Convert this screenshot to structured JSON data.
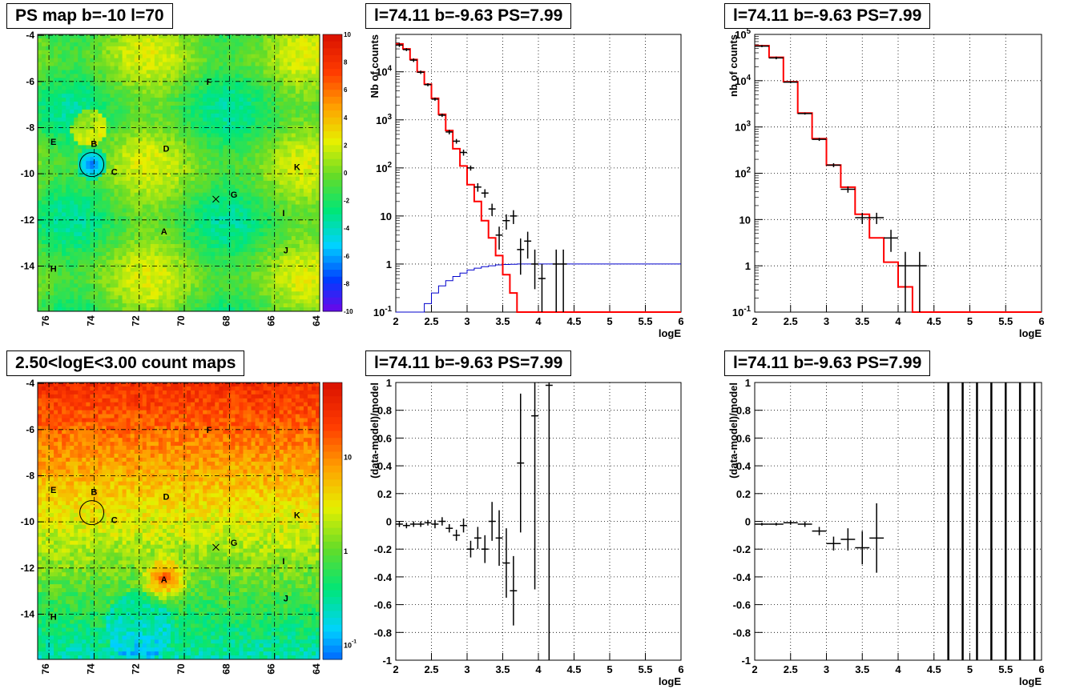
{
  "titles": {
    "map_top": "PS map b=-10 l=70",
    "spec_main": "l=74.11 b=-9.63 PS=7.99",
    "spec_side": "l=74.11 b=-9.63 PS=7.99",
    "map_bottom": "2.50<logE<3.00 count maps",
    "resid_main": "l=74.11 b=-9.63 PS=7.99",
    "resid_side": "l=74.11 b=-9.63 PS=7.99"
  },
  "colors": {
    "data": "#000000",
    "model": "#ff0000",
    "exposure": "#0000cc",
    "grid": "#000000"
  },
  "chart_data": [
    {
      "type": "heatmap",
      "title": "PS map b=-10 l=70",
      "xticks": [
        "76",
        "74",
        "72",
        "70",
        "68",
        "66",
        "64"
      ],
      "yticks": [
        "-4",
        "-6",
        "-8",
        "-10",
        "-12",
        "-14"
      ],
      "colorbar_ticks": [
        "10",
        "8",
        "6",
        "4",
        "2",
        "0",
        "-2",
        "-4",
        "-6",
        "-8",
        "-10"
      ],
      "sources": [
        {
          "label": "A",
          "l": 70.9,
          "b": -12.5
        },
        {
          "label": "B",
          "l": 74.0,
          "b": -8.7
        },
        {
          "label": "C",
          "l": 73.1,
          "b": -9.9
        },
        {
          "label": "D",
          "l": 70.8,
          "b": -8.9
        },
        {
          "label": "E",
          "l": 75.8,
          "b": -8.6
        },
        {
          "label": "F",
          "l": 68.9,
          "b": -6.0
        },
        {
          "label": "G",
          "l": 67.8,
          "b": -10.9
        },
        {
          "label": "H",
          "l": 75.8,
          "b": -14.1
        },
        {
          "label": "I",
          "l": 65.6,
          "b": -11.7
        },
        {
          "label": "J",
          "l": 65.5,
          "b": -13.3
        },
        {
          "label": "K",
          "l": 65.0,
          "b": -9.7
        }
      ],
      "circle": {
        "l": 74.1,
        "b": -9.6
      },
      "cross": {
        "l": 68.6,
        "b": -11.1
      }
    },
    {
      "type": "line",
      "title": "l=74.11 b=-9.63 PS=7.99",
      "xlabel": "logE",
      "ylabel": "Nb of counts",
      "log_y": true,
      "xlim": [
        2,
        6
      ],
      "ylim": [
        0.1,
        60000
      ],
      "xticks": [
        "2",
        "2.5",
        "3",
        "3.5",
        "4",
        "4.5",
        "5",
        "5.5",
        "6"
      ],
      "yticks": [
        {
          "v": 0.1,
          "t": "10",
          "sup": "-1"
        },
        {
          "v": 1,
          "t": "1",
          "sup": ""
        },
        {
          "v": 10,
          "t": "10",
          "sup": ""
        },
        {
          "v": 100,
          "t": "10",
          "sup": "2"
        },
        {
          "v": 1000,
          "t": "10",
          "sup": "3"
        },
        {
          "v": 10000,
          "t": "10",
          "sup": "4"
        }
      ],
      "bin_width": 0.1,
      "model": [
        38000,
        30000,
        18000,
        10000,
        5500,
        2800,
        1300,
        600,
        250,
        110,
        45,
        20,
        8,
        3.5,
        1.5,
        0.6,
        0.25,
        0.1,
        0.1,
        0.1,
        0.1,
        0.1,
        0.1,
        0.1,
        0.1,
        0.1,
        0.1,
        0.1,
        0.1,
        0.1,
        0.1,
        0.1,
        0.1,
        0.1,
        0.1,
        0.1,
        0.1,
        0.1,
        0.1,
        0.1
      ],
      "exposure": [
        0.1,
        0.1,
        0.1,
        0.1,
        0.15,
        0.25,
        0.35,
        0.45,
        0.55,
        0.65,
        0.75,
        0.82,
        0.88,
        0.92,
        0.96,
        0.98,
        0.99,
        1,
        1,
        1,
        1,
        1,
        1,
        1,
        1,
        1,
        1,
        1,
        1,
        1,
        1,
        1,
        1,
        1,
        1,
        1,
        1,
        1,
        1,
        1
      ],
      "points": [
        {
          "x": 2.05,
          "y": 36000,
          "lo": 33000,
          "hi": 39000
        },
        {
          "x": 2.15,
          "y": 29000,
          "lo": 27000,
          "hi": 31000
        },
        {
          "x": 2.25,
          "y": 17500,
          "lo": 16000,
          "hi": 19000
        },
        {
          "x": 2.35,
          "y": 9800,
          "lo": 9000,
          "hi": 10600
        },
        {
          "x": 2.45,
          "y": 5400,
          "lo": 5000,
          "hi": 5800
        },
        {
          "x": 2.55,
          "y": 2700,
          "lo": 2500,
          "hi": 2900
        },
        {
          "x": 2.65,
          "y": 1250,
          "lo": 1150,
          "hi": 1350
        },
        {
          "x": 2.75,
          "y": 560,
          "lo": 500,
          "hi": 620
        },
        {
          "x": 2.85,
          "y": 360,
          "lo": 320,
          "hi": 400
        },
        {
          "x": 2.95,
          "y": 210,
          "lo": 180,
          "hi": 240
        },
        {
          "x": 3.05,
          "y": 100,
          "lo": 88,
          "hi": 112
        },
        {
          "x": 3.15,
          "y": 40,
          "lo": 32,
          "hi": 48
        },
        {
          "x": 3.25,
          "y": 30,
          "lo": 24,
          "hi": 36
        },
        {
          "x": 3.35,
          "y": 14,
          "lo": 10,
          "hi": 18
        },
        {
          "x": 3.45,
          "y": 4,
          "lo": 2,
          "hi": 6
        },
        {
          "x": 3.55,
          "y": 8,
          "lo": 5.2,
          "hi": 10.8
        },
        {
          "x": 3.65,
          "y": 10,
          "lo": 6.8,
          "hi": 13.2
        },
        {
          "x": 3.75,
          "y": 2,
          "lo": 0.6,
          "hi": 3.4
        },
        {
          "x": 3.85,
          "y": 3,
          "lo": 1.3,
          "hi": 4.7
        },
        {
          "x": 3.95,
          "y": 1,
          "lo": 0.3,
          "hi": 2
        },
        {
          "x": 4.05,
          "y": 0.5,
          "lo": 0.1,
          "hi": 1
        },
        {
          "x": 4.25,
          "y": 1,
          "lo": 0.1,
          "hi": 2
        },
        {
          "x": 4.35,
          "y": 1,
          "lo": 0.1,
          "hi": 2
        }
      ]
    },
    {
      "type": "line",
      "title": "l=74.11 b=-9.63 PS=7.99",
      "xlabel": "logE",
      "ylabel": "nb of counts",
      "log_y": true,
      "xlim": [
        2,
        6
      ],
      "ylim": [
        0.1,
        100000
      ],
      "xticks": [
        "2",
        "2.5",
        "3",
        "3.5",
        "4",
        "4.5",
        "5",
        "5.5",
        "6"
      ],
      "yticks": [
        {
          "v": 0.1,
          "t": "10",
          "sup": "-1"
        },
        {
          "v": 1,
          "t": "1",
          "sup": ""
        },
        {
          "v": 10,
          "t": "10",
          "sup": ""
        },
        {
          "v": 100,
          "t": "10",
          "sup": "2"
        },
        {
          "v": 1000,
          "t": "10",
          "sup": "3"
        },
        {
          "v": 10000,
          "t": "10",
          "sup": "4"
        },
        {
          "v": 100000,
          "t": "10",
          "sup": "5"
        }
      ],
      "bin_width": 0.2,
      "model": [
        57000,
        32000,
        9500,
        2000,
        560,
        150,
        50,
        13,
        4,
        1.2,
        0.35,
        0.1,
        0.1,
        0.1,
        0.1,
        0.1,
        0.1,
        0.1,
        0.1,
        0.1
      ],
      "points": [
        {
          "x": 2.1,
          "y": 56000,
          "lo": 53000,
          "hi": 59000
        },
        {
          "x": 2.3,
          "y": 31000,
          "lo": 29000,
          "hi": 33000
        },
        {
          "x": 2.5,
          "y": 9300,
          "lo": 8800,
          "hi": 9800
        },
        {
          "x": 2.7,
          "y": 1950,
          "lo": 1850,
          "hi": 2050
        },
        {
          "x": 2.9,
          "y": 540,
          "lo": 500,
          "hi": 580
        },
        {
          "x": 3.1,
          "y": 150,
          "lo": 135,
          "hi": 165
        },
        {
          "x": 3.3,
          "y": 45,
          "lo": 38,
          "hi": 52
        },
        {
          "x": 3.5,
          "y": 11,
          "lo": 8,
          "hi": 14
        },
        {
          "x": 3.7,
          "y": 11,
          "lo": 8,
          "hi": 14
        },
        {
          "x": 3.9,
          "y": 4,
          "lo": 2,
          "hi": 6
        },
        {
          "x": 4.1,
          "y": 1,
          "lo": 0.1,
          "hi": 2
        },
        {
          "x": 4.3,
          "y": 1,
          "lo": 0.1,
          "hi": 2
        }
      ]
    },
    {
      "type": "heatmap",
      "title": "2.50<logE<3.00 count maps",
      "xticks": [
        "76",
        "74",
        "72",
        "70",
        "68",
        "66",
        "64"
      ],
      "yticks": [
        "-4",
        "-6",
        "-8",
        "-10",
        "-12",
        "-14"
      ],
      "colorbar_ticks": [
        {
          "t": "10",
          "sup": ""
        },
        {
          "t": "1",
          "sup": ""
        },
        {
          "t": "10",
          "sup": "-1"
        }
      ],
      "sources": [
        {
          "label": "A",
          "l": 70.9,
          "b": -12.5
        },
        {
          "label": "B",
          "l": 74.0,
          "b": -8.7
        },
        {
          "label": "C",
          "l": 73.1,
          "b": -9.9
        },
        {
          "label": "D",
          "l": 70.8,
          "b": -8.9
        },
        {
          "label": "E",
          "l": 75.8,
          "b": -8.6
        },
        {
          "label": "F",
          "l": 68.9,
          "b": -6.0
        },
        {
          "label": "G",
          "l": 67.8,
          "b": -10.9
        },
        {
          "label": "H",
          "l": 75.8,
          "b": -14.1
        },
        {
          "label": "I",
          "l": 65.6,
          "b": -11.7
        },
        {
          "label": "J",
          "l": 65.5,
          "b": -13.3
        },
        {
          "label": "K",
          "l": 65.0,
          "b": -9.7
        }
      ],
      "circle": {
        "l": 74.1,
        "b": -9.6
      },
      "cross": {
        "l": 68.6,
        "b": -11.1
      }
    },
    {
      "type": "scatter",
      "title": "l=74.11 b=-9.63 PS=7.99",
      "xlabel": "logE",
      "ylabel": "(data-model)/model",
      "xlim": [
        2,
        6
      ],
      "ylim": [
        -1,
        1
      ],
      "xticks": [
        "2",
        "2.5",
        "3",
        "3.5",
        "4",
        "4.5",
        "5",
        "5.5",
        "6"
      ],
      "yticks": [
        "-1",
        "-0.8",
        "-0.6",
        "-0.4",
        "-0.2",
        "0",
        "0.2",
        "0.4",
        "0.6",
        "0.8",
        "1"
      ],
      "points": [
        {
          "x": 2.05,
          "y": -0.02,
          "e": 0.02,
          "w": 0.05
        },
        {
          "x": 2.15,
          "y": -0.03,
          "e": 0.02,
          "w": 0.05
        },
        {
          "x": 2.25,
          "y": -0.02,
          "e": 0.02,
          "w": 0.05
        },
        {
          "x": 2.35,
          "y": -0.02,
          "e": 0.02,
          "w": 0.05
        },
        {
          "x": 2.45,
          "y": -0.01,
          "e": 0.02,
          "w": 0.05
        },
        {
          "x": 2.55,
          "y": -0.02,
          "e": 0.03,
          "w": 0.05
        },
        {
          "x": 2.65,
          "y": 0.0,
          "e": 0.03,
          "w": 0.05
        },
        {
          "x": 2.75,
          "y": -0.05,
          "e": 0.03,
          "w": 0.05
        },
        {
          "x": 2.85,
          "y": -0.1,
          "e": 0.04,
          "w": 0.05
        },
        {
          "x": 2.95,
          "y": -0.03,
          "e": 0.05,
          "w": 0.05
        },
        {
          "x": 3.05,
          "y": -0.2,
          "e": 0.06,
          "w": 0.05
        },
        {
          "x": 3.15,
          "y": -0.12,
          "e": 0.08,
          "w": 0.05
        },
        {
          "x": 3.25,
          "y": -0.2,
          "e": 0.1,
          "w": 0.05
        },
        {
          "x": 3.35,
          "y": 0.0,
          "e": 0.14,
          "w": 0.05
        },
        {
          "x": 3.45,
          "y": -0.12,
          "e": 0.2,
          "w": 0.05
        },
        {
          "x": 3.55,
          "y": -0.3,
          "e": 0.25,
          "w": 0.05
        },
        {
          "x": 3.65,
          "y": -0.5,
          "e": 0.25,
          "w": 0.05
        },
        {
          "x": 3.75,
          "y": 0.42,
          "e": 0.5,
          "w": 0.05
        },
        {
          "x": 3.95,
          "y": 0.76,
          "e": 1.25,
          "w": 0.05
        },
        {
          "x": 4.15,
          "y": 0.98,
          "e": 2,
          "w": 0.05
        }
      ]
    },
    {
      "type": "scatter",
      "title": "l=74.11 b=-9.63 PS=7.99",
      "xlabel": "logE",
      "ylabel": "(data-model)/model",
      "xlim": [
        2,
        6
      ],
      "ylim": [
        -1,
        1
      ],
      "xticks": [
        "2",
        "2.5",
        "3",
        "3.5",
        "4",
        "4.5",
        "5",
        "5.5",
        "6"
      ],
      "yticks": [
        "-1",
        "-0.8",
        "-0.6",
        "-0.4",
        "-0.2",
        "0",
        "0.2",
        "0.4",
        "0.6",
        "0.8",
        "1"
      ],
      "points": [
        {
          "x": 2.1,
          "y": -0.02,
          "e": 0.01,
          "w": 0.1
        },
        {
          "x": 2.3,
          "y": -0.02,
          "e": 0.01,
          "w": 0.1
        },
        {
          "x": 2.5,
          "y": -0.01,
          "e": 0.015,
          "w": 0.1
        },
        {
          "x": 2.7,
          "y": -0.02,
          "e": 0.02,
          "w": 0.1
        },
        {
          "x": 2.9,
          "y": -0.07,
          "e": 0.03,
          "w": 0.1
        },
        {
          "x": 3.1,
          "y": -0.16,
          "e": 0.05,
          "w": 0.1
        },
        {
          "x": 3.3,
          "y": -0.13,
          "e": 0.08,
          "w": 0.1
        },
        {
          "x": 3.5,
          "y": -0.19,
          "e": 0.12,
          "w": 0.1
        },
        {
          "x": 3.7,
          "y": -0.12,
          "e": 0.25,
          "w": 0.1
        },
        {
          "x": 4.7,
          "y": 0,
          "e": 2,
          "w": 0
        },
        {
          "x": 4.9,
          "y": 0,
          "e": 2,
          "w": 0
        },
        {
          "x": 5.1,
          "y": 0,
          "e": 2,
          "w": 0
        },
        {
          "x": 5.3,
          "y": 0,
          "e": 2,
          "w": 0
        },
        {
          "x": 5.5,
          "y": 0,
          "e": 2,
          "w": 0
        },
        {
          "x": 5.7,
          "y": 0,
          "e": 2,
          "w": 0
        },
        {
          "x": 5.9,
          "y": 0,
          "e": 2,
          "w": 0
        }
      ]
    }
  ]
}
